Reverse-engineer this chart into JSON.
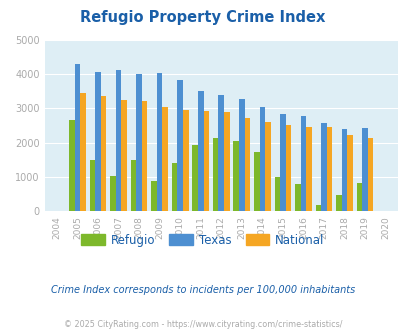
{
  "title": "Refugio Property Crime Index",
  "years": [
    2004,
    2005,
    2006,
    2007,
    2008,
    2009,
    2010,
    2011,
    2012,
    2013,
    2014,
    2015,
    2016,
    2017,
    2018,
    2019,
    2020
  ],
  "refugio": [
    0,
    2650,
    1500,
    1020,
    1480,
    870,
    1400,
    1940,
    2130,
    2060,
    1720,
    1010,
    800,
    180,
    460,
    810,
    0
  ],
  "texas": [
    0,
    4300,
    4070,
    4100,
    4000,
    4030,
    3820,
    3490,
    3390,
    3270,
    3050,
    2840,
    2770,
    2570,
    2400,
    2410,
    0
  ],
  "national": [
    0,
    3450,
    3360,
    3250,
    3220,
    3050,
    2950,
    2930,
    2890,
    2720,
    2610,
    2500,
    2460,
    2440,
    2210,
    2140,
    0
  ],
  "refugio_color": "#7db82b",
  "texas_color": "#4d8fd1",
  "national_color": "#f5a623",
  "bg_color": "#deeef5",
  "ylim": [
    0,
    5000
  ],
  "yticks": [
    0,
    1000,
    2000,
    3000,
    4000,
    5000
  ],
  "note": "Crime Index corresponds to incidents per 100,000 inhabitants",
  "copyright": "© 2025 CityRating.com - https://www.cityrating.com/crime-statistics/",
  "title_color": "#1a5fa8",
  "note_color": "#1a5fa8",
  "copyright_color": "#aaaaaa",
  "tick_color": "#aaaaaa"
}
